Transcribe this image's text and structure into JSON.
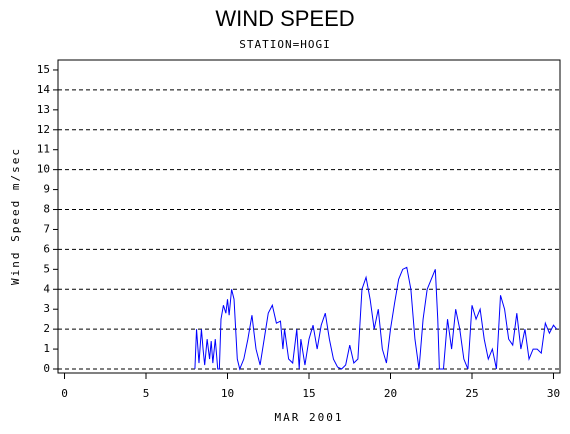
{
  "chart_data": {
    "type": "line",
    "title": "WIND SPEED",
    "subtitle": "STATION=HOGI",
    "x_label": "MAR 2001",
    "y_label": "Wind Speed m/sec",
    "color": "#0000ff",
    "grid": true,
    "xlim": [
      -0.4,
      30.4
    ],
    "xticks": [
      0,
      5,
      10,
      15,
      20,
      25,
      30
    ],
    "ylim": [
      -0.2,
      15.5
    ],
    "yticks": [
      0,
      1,
      2,
      3,
      4,
      5,
      6,
      7,
      8,
      9,
      10,
      11,
      12,
      13,
      14,
      15
    ],
    "x": [
      8.0,
      8.1,
      8.25,
      8.4,
      8.5,
      8.6,
      8.75,
      8.9,
      9.0,
      9.1,
      9.25,
      9.4,
      9.5,
      9.6,
      9.75,
      9.9,
      10.0,
      10.1,
      10.25,
      10.4,
      10.5,
      10.6,
      10.75,
      11.0,
      11.25,
      11.5,
      11.6,
      11.75,
      12.0,
      12.25,
      12.5,
      12.75,
      13.0,
      13.25,
      13.4,
      13.5,
      13.75,
      14.0,
      14.25,
      14.4,
      14.5,
      14.75,
      15.0,
      15.25,
      15.5,
      15.75,
      16.0,
      16.25,
      16.5,
      16.75,
      17.0,
      17.25,
      17.5,
      17.75,
      18.0,
      18.25,
      18.5,
      18.75,
      19.0,
      19.25,
      19.5,
      19.75,
      20.0,
      20.25,
      20.5,
      20.75,
      21.0,
      21.25,
      21.5,
      21.75,
      22.0,
      22.25,
      22.5,
      22.75,
      22.9,
      23.0,
      23.25,
      23.5,
      23.75,
      24.0,
      24.25,
      24.5,
      24.75,
      25.0,
      25.25,
      25.5,
      25.75,
      26.0,
      26.25,
      26.5,
      26.75,
      27.0,
      27.25,
      27.5,
      27.75,
      28.0,
      28.25,
      28.5,
      28.75,
      29.0,
      29.25,
      29.5,
      29.75,
      30.0,
      30.2
    ],
    "values": [
      0,
      2,
      0.3,
      2,
      1,
      0.2,
      1.5,
      0.5,
      1.4,
      0.3,
      1.5,
      0,
      0,
      2.5,
      3.2,
      2.8,
      3.5,
      2.7,
      4.0,
      3.5,
      2.0,
      0.5,
      0,
      0.5,
      1.5,
      2.7,
      2.0,
      1.0,
      0.2,
      1.5,
      2.8,
      3.2,
      2.3,
      2.4,
      1.0,
      2.0,
      0.5,
      0.3,
      2.0,
      0,
      1.5,
      0.2,
      1.5,
      2.2,
      1.0,
      2.2,
      2.8,
      1.5,
      0.5,
      0.1,
      0,
      0.2,
      1.2,
      0.3,
      0.5,
      4.0,
      4.6,
      3.5,
      2.0,
      3.0,
      1.0,
      0.3,
      2.0,
      3.3,
      4.5,
      5.0,
      5.1,
      4.0,
      1.5,
      0,
      2.5,
      4.0,
      4.5,
      5.0,
      2.5,
      0,
      0,
      2.5,
      1.0,
      3.0,
      2.0,
      0.5,
      0,
      3.2,
      2.5,
      3.0,
      1.5,
      0.5,
      1.0,
      0,
      3.7,
      3.0,
      1.5,
      1.2,
      2.8,
      1.0,
      2.0,
      0.5,
      1.0,
      1.0,
      0.8,
      2.3,
      1.8,
      2.2,
      2.0
    ]
  }
}
